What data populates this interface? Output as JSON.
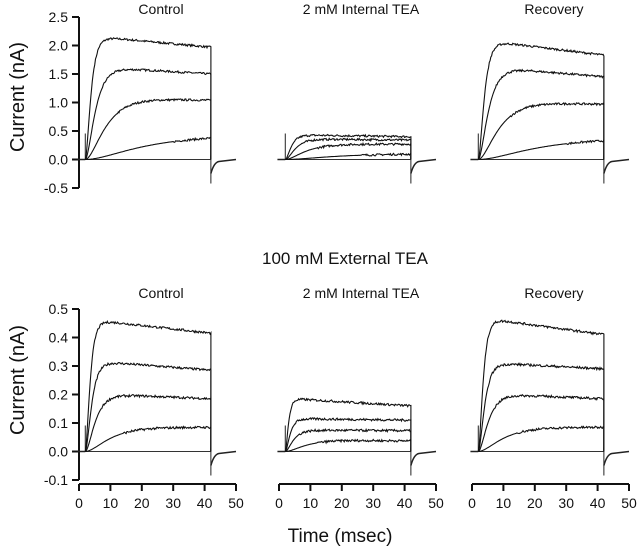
{
  "chart_data": {
    "type": "line",
    "title": "",
    "section_label": "100 mM External TEA",
    "xlabel": "Time (msec)",
    "ylabel": "Current (nA)",
    "x_ticks": [
      0,
      10,
      20,
      30,
      40,
      50
    ],
    "xlim": [
      0,
      50
    ],
    "pulse": {
      "start_ms": 2,
      "end_ms": 42
    },
    "rows": [
      {
        "name": "no-external-tea",
        "ylim": [
          -0.5,
          2.5
        ],
        "y_ticks": [
          "2.5",
          "2.0",
          "1.5",
          "1.0",
          "0.5",
          "0.0",
          "-0.5"
        ],
        "y_tick_values": [
          2.5,
          2.0,
          1.5,
          1.0,
          0.5,
          0.0,
          -0.5
        ],
        "panels": [
          {
            "title": "Control",
            "series": [
              {
                "name": "step-4",
                "peak": 2.15,
                "end": 1.97,
                "tau_ms": 1.4
              },
              {
                "name": "step-3",
                "peak": 1.61,
                "end": 1.5,
                "tau_ms": 2.5
              },
              {
                "name": "step-2",
                "peak": 1.07,
                "end": 1.04,
                "tau_ms": 5.0
              },
              {
                "name": "step-1",
                "peak": 0.42,
                "end": 0.42,
                "tau_ms": 14.0
              }
            ]
          },
          {
            "title": "2 mM Internal TEA",
            "series": [
              {
                "name": "step-4",
                "peak": 0.43,
                "end": 0.4,
                "tau_ms": 1.5
              },
              {
                "name": "step-3",
                "peak": 0.36,
                "end": 0.34,
                "tau_ms": 2.5
              },
              {
                "name": "step-2",
                "peak": 0.27,
                "end": 0.27,
                "tau_ms": 5.0
              },
              {
                "name": "step-1",
                "peak": 0.1,
                "end": 0.1,
                "tau_ms": 12.0
              }
            ]
          },
          {
            "title": "Recovery",
            "series": [
              {
                "name": "step-4",
                "peak": 2.07,
                "end": 1.83,
                "tau_ms": 1.5
              },
              {
                "name": "step-3",
                "peak": 1.6,
                "end": 1.45,
                "tau_ms": 2.5
              },
              {
                "name": "step-2",
                "peak": 1.0,
                "end": 0.97,
                "tau_ms": 5.0
              },
              {
                "name": "step-1",
                "peak": 0.37,
                "end": 0.37,
                "tau_ms": 14.0
              }
            ]
          }
        ]
      },
      {
        "name": "100-mm-external-tea",
        "ylim": [
          -0.1,
          0.5
        ],
        "y_ticks": [
          "0.5",
          "0.4",
          "0.3",
          "0.2",
          "0.1",
          "0.0",
          "-0.1"
        ],
        "y_tick_values": [
          0.5,
          0.4,
          0.3,
          0.2,
          0.1,
          0.0,
          -0.1
        ],
        "panels": [
          {
            "title": "Control",
            "series": [
              {
                "name": "step-4",
                "peak": 0.46,
                "end": 0.415,
                "tau_ms": 1.2
              },
              {
                "name": "step-3",
                "peak": 0.315,
                "end": 0.285,
                "tau_ms": 1.6
              },
              {
                "name": "step-2",
                "peak": 0.2,
                "end": 0.185,
                "tau_ms": 2.5
              },
              {
                "name": "step-1",
                "peak": 0.085,
                "end": 0.085,
                "tau_ms": 6.0
              }
            ]
          },
          {
            "title": "2 mM Internal TEA",
            "series": [
              {
                "name": "step-4",
                "peak": 0.185,
                "end": 0.16,
                "tau_ms": 0.8
              },
              {
                "name": "step-3",
                "peak": 0.115,
                "end": 0.11,
                "tau_ms": 1.2
              },
              {
                "name": "step-2",
                "peak": 0.075,
                "end": 0.073,
                "tau_ms": 2.0
              },
              {
                "name": "step-1",
                "peak": 0.04,
                "end": 0.037,
                "tau_ms": 5.0
              }
            ]
          },
          {
            "title": "Recovery",
            "series": [
              {
                "name": "step-4",
                "peak": 0.465,
                "end": 0.41,
                "tau_ms": 1.2
              },
              {
                "name": "step-3",
                "peak": 0.31,
                "end": 0.29,
                "tau_ms": 1.6
              },
              {
                "name": "step-2",
                "peak": 0.2,
                "end": 0.185,
                "tau_ms": 2.5
              },
              {
                "name": "step-1",
                "peak": 0.085,
                "end": 0.085,
                "tau_ms": 6.0
              }
            ]
          }
        ]
      }
    ]
  }
}
